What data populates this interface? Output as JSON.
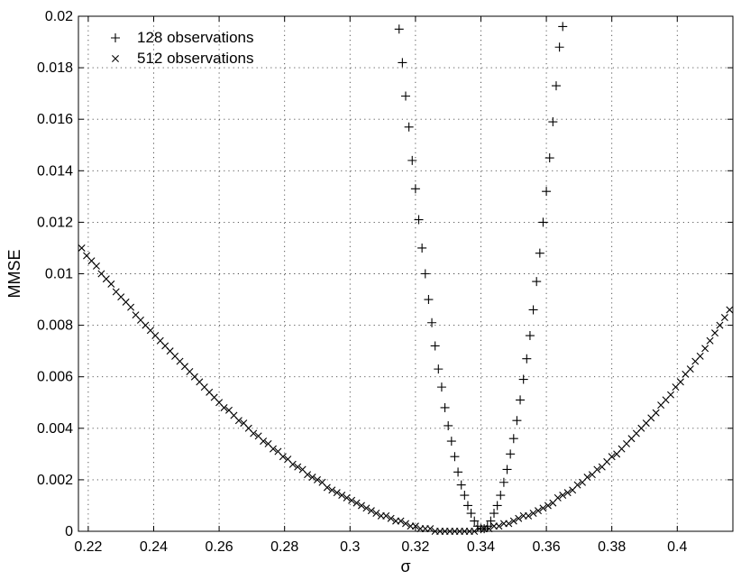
{
  "chart_data": {
    "type": "scatter",
    "title": "",
    "xlabel": "σ",
    "ylabel": "MMSE",
    "xlim": [
      0.217,
      0.417
    ],
    "ylim": [
      0,
      0.02
    ],
    "grid": true,
    "legend_position": "top-left",
    "xticks": [
      "0.22",
      "0.24",
      "0.26",
      "0.28",
      "0.3",
      "0.32",
      "0.34",
      "0.36",
      "0.38",
      "0.4"
    ],
    "yticks": [
      "0",
      "0.002",
      "0.004",
      "0.006",
      "0.008",
      "0.01",
      "0.012",
      "0.014",
      "0.016",
      "0.018",
      "0.02"
    ],
    "series": [
      {
        "name": "128 observations",
        "marker": "plus",
        "x": [
          0.315,
          0.316,
          0.317,
          0.318,
          0.319,
          0.32,
          0.321,
          0.322,
          0.323,
          0.324,
          0.325,
          0.326,
          0.327,
          0.328,
          0.329,
          0.33,
          0.331,
          0.332,
          0.333,
          0.334,
          0.335,
          0.336,
          0.337,
          0.338,
          0.339,
          0.34,
          0.341,
          0.342,
          0.343,
          0.344,
          0.345,
          0.346,
          0.347,
          0.348,
          0.349,
          0.35,
          0.351,
          0.352,
          0.353,
          0.354,
          0.355,
          0.356,
          0.357,
          0.358,
          0.359,
          0.36,
          0.361,
          0.362,
          0.363,
          0.364,
          0.365
        ],
        "y": [
          0.0195,
          0.0182,
          0.0169,
          0.0157,
          0.0144,
          0.0133,
          0.0121,
          0.011,
          0.01,
          0.009,
          0.0081,
          0.0072,
          0.0063,
          0.0056,
          0.0048,
          0.0041,
          0.0035,
          0.0029,
          0.0023,
          0.0018,
          0.0014,
          0.001,
          0.0007,
          0.0004,
          0.0002,
          0.0001,
          0.0001,
          0.0002,
          0.0004,
          0.0007,
          0.001,
          0.0014,
          0.0019,
          0.0024,
          0.003,
          0.0036,
          0.0043,
          0.0051,
          0.0059,
          0.0067,
          0.0076,
          0.0086,
          0.0097,
          0.0108,
          0.012,
          0.0132,
          0.0145,
          0.0159,
          0.0173,
          0.0188,
          0.0196
        ]
      },
      {
        "name": "512 observations",
        "marker": "cross",
        "x": [
          0.218,
          0.2195,
          0.221,
          0.2225,
          0.224,
          0.2255,
          0.227,
          0.2285,
          0.23,
          0.2315,
          0.233,
          0.2345,
          0.236,
          0.2375,
          0.239,
          0.2405,
          0.242,
          0.2435,
          0.245,
          0.2465,
          0.248,
          0.2495,
          0.251,
          0.2525,
          0.254,
          0.2555,
          0.257,
          0.2585,
          0.26,
          0.2615,
          0.263,
          0.2645,
          0.266,
          0.2675,
          0.269,
          0.2705,
          0.272,
          0.2735,
          0.275,
          0.2765,
          0.278,
          0.2795,
          0.281,
          0.2825,
          0.284,
          0.2855,
          0.287,
          0.2885,
          0.29,
          0.2915,
          0.293,
          0.2945,
          0.296,
          0.2975,
          0.299,
          0.3005,
          0.302,
          0.3035,
          0.305,
          0.3065,
          0.308,
          0.3095,
          0.311,
          0.3125,
          0.314,
          0.3155,
          0.317,
          0.3185,
          0.32,
          0.3215,
          0.323,
          0.3245,
          0.326,
          0.3275,
          0.329,
          0.3305,
          0.332,
          0.3335,
          0.335,
          0.3365,
          0.338,
          0.3395,
          0.341,
          0.3425,
          0.344,
          0.3455,
          0.347,
          0.3485,
          0.35,
          0.3515,
          0.353,
          0.3545,
          0.356,
          0.3575,
          0.359,
          0.3605,
          0.362,
          0.3635,
          0.365,
          0.3665,
          0.368,
          0.3695,
          0.371,
          0.3725,
          0.374,
          0.3755,
          0.377,
          0.3785,
          0.38,
          0.3815,
          0.383,
          0.3845,
          0.386,
          0.3875,
          0.389,
          0.3905,
          0.392,
          0.3935,
          0.395,
          0.3965,
          0.398,
          0.3995,
          0.401,
          0.4025,
          0.404,
          0.4055,
          0.407,
          0.4085,
          0.41,
          0.4115,
          0.413,
          0.4145,
          0.416
        ],
        "y": [
          0.011,
          0.0107,
          0.0105,
          0.0103,
          0.01,
          0.0098,
          0.0096,
          0.0093,
          0.0091,
          0.0089,
          0.0087,
          0.0084,
          0.0082,
          0.008,
          0.0078,
          0.0076,
          0.0074,
          0.0072,
          0.007,
          0.0068,
          0.0066,
          0.0064,
          0.0062,
          0.006,
          0.0058,
          0.0056,
          0.0054,
          0.0052,
          0.005,
          0.0048,
          0.0047,
          0.0045,
          0.0043,
          0.0042,
          0.004,
          0.0038,
          0.0037,
          0.0035,
          0.0034,
          0.0032,
          0.0031,
          0.0029,
          0.0028,
          0.0026,
          0.0025,
          0.0024,
          0.0022,
          0.0021,
          0.002,
          0.0019,
          0.0017,
          0.0016,
          0.0015,
          0.0014,
          0.0013,
          0.0012,
          0.0011,
          0.001,
          0.0009,
          0.0008,
          0.0007,
          0.0006,
          0.0006,
          0.0005,
          0.0004,
          0.0004,
          0.0003,
          0.0002,
          0.0002,
          0.0001,
          0.0001,
          0.0001,
          0.0,
          0.0,
          0.0,
          0.0,
          0.0,
          0.0,
          0.0,
          0.0,
          0.0,
          0.0001,
          0.0001,
          0.0001,
          0.0002,
          0.0002,
          0.0003,
          0.0003,
          0.0004,
          0.0005,
          0.0006,
          0.0006,
          0.0007,
          0.0008,
          0.0009,
          0.001,
          0.0011,
          0.0013,
          0.0014,
          0.0015,
          0.0016,
          0.0018,
          0.0019,
          0.0021,
          0.0022,
          0.0024,
          0.0025,
          0.0027,
          0.0029,
          0.003,
          0.0032,
          0.0034,
          0.0036,
          0.0038,
          0.004,
          0.0042,
          0.0044,
          0.0046,
          0.0049,
          0.0051,
          0.0053,
          0.0056,
          0.0058,
          0.0061,
          0.0063,
          0.0066,
          0.0068,
          0.0071,
          0.0074,
          0.0077,
          0.008,
          0.0083,
          0.0086
        ]
      }
    ]
  }
}
